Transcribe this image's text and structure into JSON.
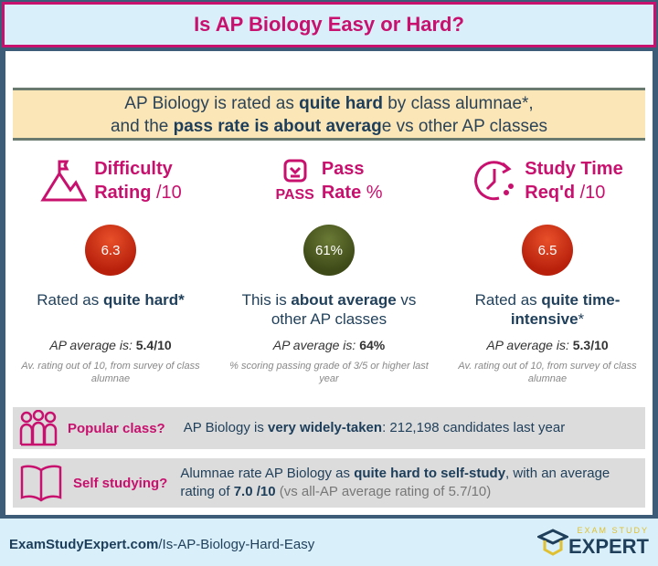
{
  "title": "Is AP Biology Easy or Hard?",
  "banner": {
    "l1a": "AP Biology is rated as ",
    "l1b": "quite hard",
    "l1c": " by class alumnae*,",
    "l2a": "and the ",
    "l2b": "pass rate is about averag",
    "l2c": "e vs other AP classes"
  },
  "columns": [
    {
      "icon": "mountain-flag-icon",
      "h1": "Difficulty",
      "h2": "Rating",
      "h2s": " /10",
      "value": "6.3",
      "d1": "Rated as ",
      "d2": "quite hard*",
      "d3": "",
      "avg_label": "AP average is: ",
      "avg_value": "5.4/10",
      "note": "Av. rating out of 10, from survey of class alumnae"
    },
    {
      "icon": "pass-icon",
      "icon_text": "PASS",
      "h1": "Pass",
      "h2": "Rate",
      "h2s": " %",
      "value": "61%",
      "d1": "This is ",
      "d2": "about average",
      "d3": " vs other AP classes",
      "avg_label": "AP average is: ",
      "avg_value": "64%",
      "note": "% scoring passing grade of 3/5 or higher last year"
    },
    {
      "icon": "clock-icon",
      "h1": "Study Time",
      "h2": "Req'd",
      "h2s": " /10",
      "value": "6.5",
      "d1": "Rated as ",
      "d2": "quite time-intensive",
      "d3": "*",
      "avg_label": "AP average is: ",
      "avg_value": "5.3/10",
      "note": "Av. rating out of 10, from survey of class alumnae"
    }
  ],
  "popular": {
    "label": "Popular class?",
    "t1": "AP Biology is ",
    "t2": "very widely-taken",
    "t3": ": 212,198  candidates last year"
  },
  "self": {
    "label": "Self studying?",
    "t1": "Alumnae rate AP Biology as ",
    "t2": "quite hard to self-study",
    "t3": ", with an average rating of ",
    "t4": "7.0 /10",
    "t5": " (vs all-AP average rating of 5.7/10)"
  },
  "footer": {
    "domain": "ExamStudyExpert.com",
    "path": "/Is-AP-Biology-Hard-Easy",
    "logo_small": "EXAM STUDY",
    "logo_big": "EXPERT"
  },
  "colors": {
    "accent": "#c8106e",
    "navy": "#1f3f5a",
    "red_ball": "#c0301a",
    "green_ball": "#4a5a20"
  }
}
